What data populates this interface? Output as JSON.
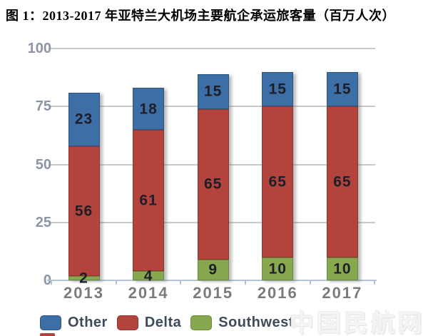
{
  "figure": {
    "title": "图 1：2013-2017 年亚特兰大机场主要航企承运旅客量（百万人次）"
  },
  "chart_data": {
    "type": "bar",
    "stacked": true,
    "title": "图 1：2013-2017 年亚特兰大机场主要航企承运旅客量（百万人次）",
    "xlabel": "",
    "ylabel": "",
    "categories": [
      "2013",
      "2014",
      "2015",
      "2016",
      "2017"
    ],
    "series": [
      {
        "name": "Southwest",
        "color": "#87a84e",
        "border_color": "#6c8a3c",
        "values": [
          2,
          4,
          9,
          10,
          10
        ]
      },
      {
        "name": "Delta",
        "color": "#b2443d",
        "border_color": "#8f3531",
        "values": [
          56,
          61,
          65,
          65,
          65
        ]
      },
      {
        "name": "Other",
        "color": "#3d6ea5",
        "border_color": "#2d567f",
        "values": [
          23,
          18,
          15,
          15,
          15
        ]
      }
    ],
    "totals": [
      81,
      83,
      88,
      90,
      90
    ],
    "ylim": [
      0,
      100
    ],
    "yticks": [
      0,
      25,
      50,
      75,
      100
    ],
    "grid": true,
    "legend_position": "bottom",
    "legend": [
      "Other",
      "Delta",
      "Southwest"
    ]
  },
  "watermark": {
    "text": "中国民航网"
  }
}
